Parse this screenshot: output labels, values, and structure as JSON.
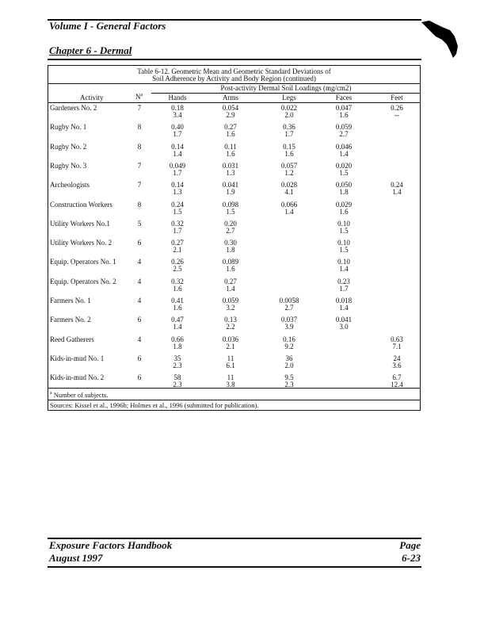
{
  "header": {
    "volume": "Volume I - General Factors",
    "chapter": "Chapter 6 - Dermal",
    "logo": "hand-icon"
  },
  "table": {
    "title_line1": "Table 6-12. Geometric Mean and Geometric Standard Deviations of",
    "title_line2": "Soil Adherence by Activity and Body Region (continued)",
    "group_header": "Post-activity Dermal Soil Loadings (mg/cm2)",
    "columns": [
      "Activity",
      "Na",
      "Hands",
      "Arms",
      "Legs",
      "Faces",
      "Feet"
    ],
    "rows": [
      {
        "activity": "Gardeners No. 2",
        "n": "7",
        "hands": [
          "0.18",
          "3.4"
        ],
        "arms": [
          "0.054",
          "2.9"
        ],
        "legs": [
          "0.022",
          "2.0"
        ],
        "faces": [
          "0.047",
          "1.6"
        ],
        "feet": [
          "0.26",
          "--"
        ]
      },
      {
        "activity": "Rugby No. 1",
        "n": "8",
        "hands": [
          "0.40",
          "1.7"
        ],
        "arms": [
          "0.27",
          "1.6"
        ],
        "legs": [
          "0.36",
          "1.7"
        ],
        "faces": [
          "0.059",
          "2.7"
        ],
        "feet": [
          "",
          ""
        ]
      },
      {
        "activity": "Rugby No. 2",
        "n": "8",
        "hands": [
          "0.14",
          "1.4"
        ],
        "arms": [
          "0.11",
          "1.6"
        ],
        "legs": [
          "0.15",
          "1.6"
        ],
        "faces": [
          "0.046",
          "1.4"
        ],
        "feet": [
          "",
          ""
        ]
      },
      {
        "activity": "Rugby No. 3",
        "n": "7",
        "hands": [
          "0.049",
          "1.7"
        ],
        "arms": [
          "0.031",
          "1.3"
        ],
        "legs": [
          "0.057",
          "1.2"
        ],
        "faces": [
          "0.020",
          "1.5"
        ],
        "feet": [
          "",
          ""
        ]
      },
      {
        "activity": "Archeologists",
        "n": "7",
        "hands": [
          "0.14",
          "1.3"
        ],
        "arms": [
          "0.041",
          "1.9"
        ],
        "legs": [
          "0.028",
          "4.1"
        ],
        "faces": [
          "0.050",
          "1.8"
        ],
        "feet": [
          "0.24",
          "1.4"
        ]
      },
      {
        "activity": "Construction Workers",
        "n": "8",
        "hands": [
          "0.24",
          "1.5"
        ],
        "arms": [
          "0.098",
          "1.5"
        ],
        "legs": [
          "0.066",
          "1.4"
        ],
        "faces": [
          "0.029",
          "1.6"
        ],
        "feet": [
          "",
          ""
        ]
      },
      {
        "activity": "Utility Workers No.1",
        "n": "5",
        "hands": [
          "0.32",
          "1.7"
        ],
        "arms": [
          "0.20",
          "2.7"
        ],
        "legs": [
          "",
          ""
        ],
        "faces": [
          "0.10",
          "1.5"
        ],
        "feet": [
          "",
          ""
        ]
      },
      {
        "activity": "Utility Workers No. 2",
        "n": "6",
        "hands": [
          "0.27",
          "2.1"
        ],
        "arms": [
          "0.30",
          "1.8"
        ],
        "legs": [
          "",
          ""
        ],
        "faces": [
          "0.10",
          "1.5"
        ],
        "feet": [
          "",
          ""
        ]
      },
      {
        "activity": "Equip. Operators No. 1",
        "n": "4",
        "hands": [
          "0.26",
          "2.5"
        ],
        "arms": [
          "0.089",
          "1.6"
        ],
        "legs": [
          "",
          ""
        ],
        "faces": [
          "0.10",
          "1.4"
        ],
        "feet": [
          "",
          ""
        ]
      },
      {
        "activity": "Equip. Operators No. 2",
        "n": "4",
        "hands": [
          "0.32",
          "1.6"
        ],
        "arms": [
          "0.27",
          "1.4"
        ],
        "legs": [
          "",
          ""
        ],
        "faces": [
          "0.23",
          "1.7"
        ],
        "feet": [
          "",
          ""
        ]
      },
      {
        "activity": "Farmers No. 1",
        "n": "4",
        "hands": [
          "0.41",
          "1.6"
        ],
        "arms": [
          "0.059",
          "3.2"
        ],
        "legs": [
          "0.0058",
          "2.7"
        ],
        "faces": [
          "0.018",
          "1.4"
        ],
        "feet": [
          "",
          ""
        ]
      },
      {
        "activity": "Farmers No. 2",
        "n": "6",
        "hands": [
          "0.47",
          "1.4"
        ],
        "arms": [
          "0.13",
          "2.2"
        ],
        "legs": [
          "0.037",
          "3.9"
        ],
        "faces": [
          "0.041",
          "3.0"
        ],
        "feet": [
          "",
          ""
        ]
      },
      {
        "activity": "Reed Gatherers",
        "n": "4",
        "hands": [
          "0.66",
          "1.8"
        ],
        "arms": [
          "0.036",
          "2.1"
        ],
        "legs": [
          "0.16",
          "9.2"
        ],
        "faces": [
          "",
          ""
        ],
        "feet": [
          "0.63",
          "7.1"
        ]
      },
      {
        "activity": "Kids-in-mud No. 1",
        "n": "6",
        "hands": [
          "35",
          "2.3"
        ],
        "arms": [
          "11",
          "6.1"
        ],
        "legs": [
          "36",
          "2.0"
        ],
        "faces": [
          "",
          ""
        ],
        "feet": [
          "24",
          "3.6"
        ]
      },
      {
        "activity": "Kids-in-mud No. 2",
        "n": "6",
        "hands": [
          "58",
          "2.3"
        ],
        "arms": [
          "11",
          "3.8"
        ],
        "legs": [
          "9.5",
          "2.3"
        ],
        "faces": [
          "",
          ""
        ],
        "feet": [
          "6.7",
          "12.4"
        ]
      }
    ],
    "footnote_mark": "a",
    "footnote": "Number of subjects.",
    "sources": "Sources: Kissel et al., 1996b; Holmes et al., 1996 (submitted for publication)."
  },
  "footer": {
    "title": "Exposure Factors Handbook",
    "date": "August 1997",
    "page_label": "Page",
    "page_number": "6-23"
  }
}
